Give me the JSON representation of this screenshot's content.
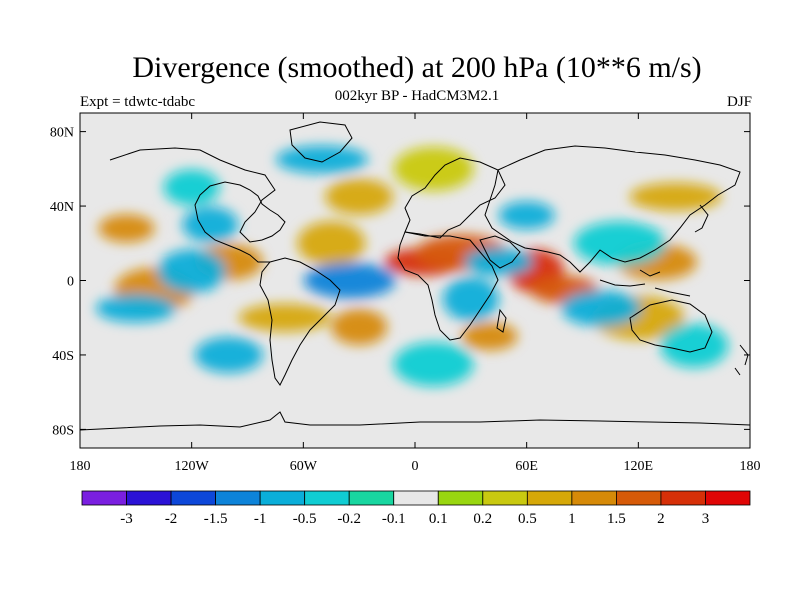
{
  "title": "Divergence (smoothed) at 200 hPa (10**6 m/s)",
  "subtitle": "002kyr BP - HadCM3M2.1",
  "experiment": "Expt = tdwtc-tdabc",
  "season": "DJF",
  "map": {
    "lon_range": [
      -180,
      180
    ],
    "lat_range": [
      -90,
      90
    ],
    "x_ticks": [
      {
        "lon": -180,
        "label": "180"
      },
      {
        "lon": -120,
        "label": "120W"
      },
      {
        "lon": -60,
        "label": "60W"
      },
      {
        "lon": 0,
        "label": "0"
      },
      {
        "lon": 60,
        "label": "60E"
      },
      {
        "lon": 120,
        "label": "120E"
      },
      {
        "lon": 180,
        "label": "180"
      }
    ],
    "y_ticks": [
      {
        "lat": 80,
        "label": "80N"
      },
      {
        "lat": 40,
        "label": "40N"
      },
      {
        "lat": 0,
        "label": "0"
      },
      {
        "lat": -40,
        "label": "40S"
      },
      {
        "lat": -80,
        "label": "80S"
      }
    ]
  },
  "colorbar": {
    "colors": [
      "#7a1fe0",
      "#2b12d6",
      "#0d47d9",
      "#0d83d9",
      "#0aaed9",
      "#10cdd3",
      "#18d6a0",
      "#e8e8e8",
      "#99d610",
      "#c9c910",
      "#d6a808",
      "#d68a08",
      "#d65a08",
      "#d63008",
      "#e00505"
    ],
    "boundary_labels": [
      "-3",
      "-2",
      "-1.5",
      "-1",
      "-0.5",
      "-0.2",
      "-0.1",
      "0.1",
      "0.2",
      "0.5",
      "1",
      "1.5",
      "2",
      "3"
    ]
  },
  "field_bands": [
    {
      "lat": 28,
      "lon": -155,
      "level": 4
    },
    {
      "lat": 10,
      "lon": -100,
      "level": 4
    },
    {
      "lat": -5,
      "lon": -140,
      "level": 4
    },
    {
      "lat": -20,
      "lon": -70,
      "level": 3
    },
    {
      "lat": -25,
      "lon": -30,
      "level": 4
    },
    {
      "lat": 20,
      "lon": -45,
      "level": 3
    },
    {
      "lat": 10,
      "lon": 5,
      "level": 6
    },
    {
      "lat": 15,
      "lon": 25,
      "level": 5
    },
    {
      "lat": 5,
      "lon": 65,
      "level": 6
    },
    {
      "lat": -5,
      "lon": 80,
      "level": 5
    },
    {
      "lat": 10,
      "lon": 130,
      "level": 4
    },
    {
      "lat": -20,
      "lon": 120,
      "level": 3
    },
    {
      "lat": -30,
      "lon": 40,
      "level": 4
    },
    {
      "lat": 45,
      "lon": -30,
      "level": 3
    },
    {
      "lat": 60,
      "lon": 10,
      "level": 2
    },
    {
      "lat": 45,
      "lon": 140,
      "level": 3
    },
    {
      "lat": 30,
      "lon": -110,
      "level": -3
    },
    {
      "lat": 5,
      "lon": -120,
      "level": -3
    },
    {
      "lat": -15,
      "lon": -150,
      "level": -3
    },
    {
      "lat": 0,
      "lon": -35,
      "level": -4
    },
    {
      "lat": -10,
      "lon": 30,
      "level": -3
    },
    {
      "lat": 10,
      "lon": 45,
      "level": -3
    },
    {
      "lat": -15,
      "lon": 100,
      "level": -3
    },
    {
      "lat": 20,
      "lon": 110,
      "level": -2
    },
    {
      "lat": 35,
      "lon": 60,
      "level": -3
    },
    {
      "lat": -40,
      "lon": -100,
      "level": -3
    },
    {
      "lat": -45,
      "lon": 10,
      "level": -2
    },
    {
      "lat": 65,
      "lon": -50,
      "level": -3
    },
    {
      "lat": 50,
      "lon": -120,
      "level": -2
    },
    {
      "lat": -35,
      "lon": 150,
      "level": -2
    }
  ]
}
